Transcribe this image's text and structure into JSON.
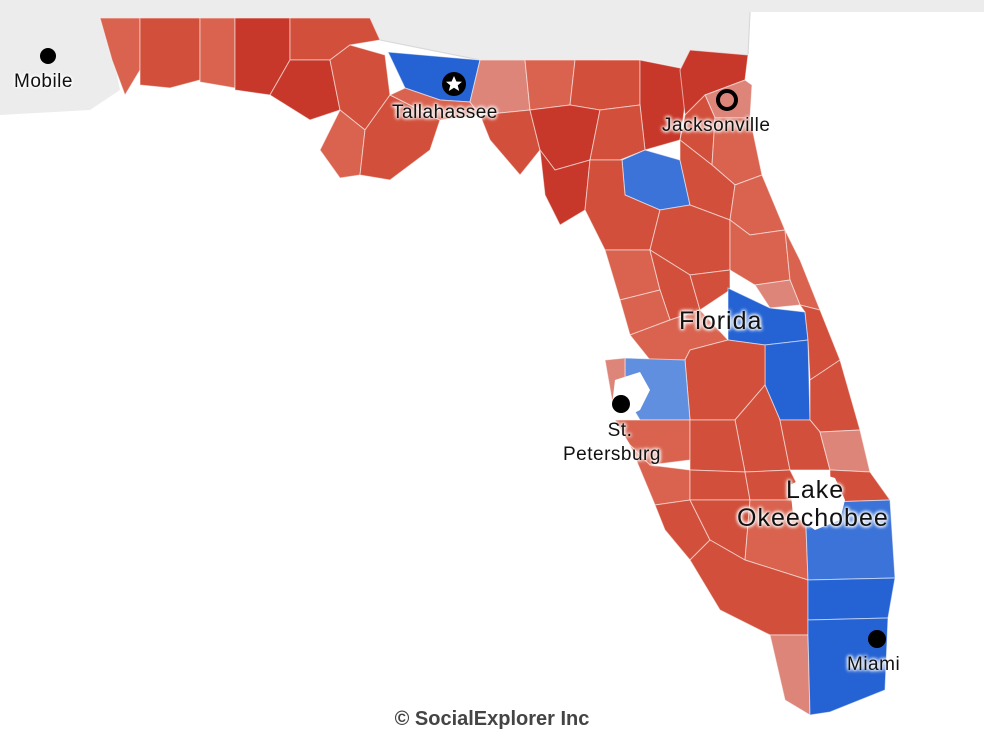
{
  "map": {
    "state_label": "Florida",
    "cities": {
      "mobile": "Mobile",
      "tallahassee": "Tallahassee",
      "jacksonville": "Jacksonville",
      "st_petersburg_1": "St.",
      "st_petersburg_2": "Petersburg",
      "miami": "Miami"
    },
    "water": {
      "lake_1": "Lake",
      "lake_2": "Okeechobee"
    },
    "colors": {
      "land_other": "#ececec",
      "water": "#ffffff",
      "dark_red": "#c8382a",
      "red": "#d24f3b",
      "medium_red": "#d9634f",
      "light_red": "#de857a",
      "dark_blue": "#2563d4",
      "blue": "#3b73d8",
      "light_blue": "#5f8fde"
    }
  },
  "footer": {
    "copyright": "© SocialExplorer Inc"
  }
}
